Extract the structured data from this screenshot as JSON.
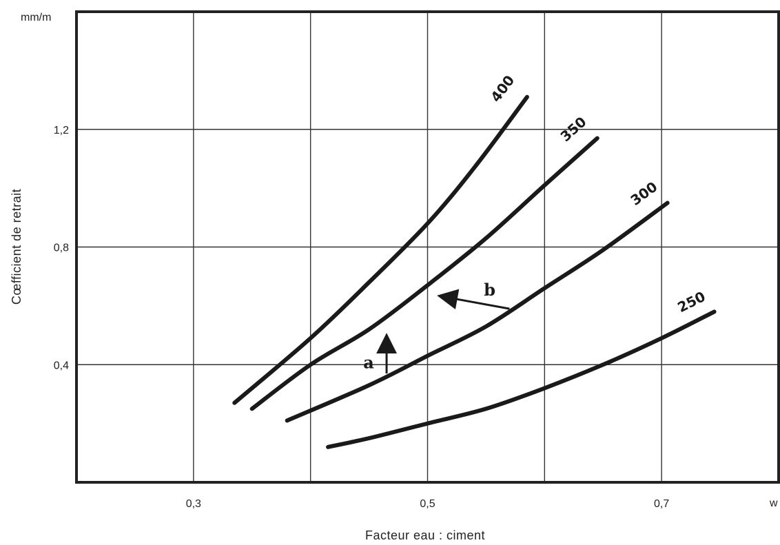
{
  "chart_data": {
    "type": "line",
    "title": "",
    "ylabel": "Cœfficient de retrait",
    "yunit": "mm/m",
    "xlabel": "Facteur eau : ciment",
    "xunit": "w",
    "xlim": [
      0.2,
      0.8
    ],
    "ylim": [
      0,
      1.6
    ],
    "x_ticks": [
      {
        "value": 0.3,
        "label": "0,3"
      },
      {
        "value": 0.5,
        "label": "0,5"
      },
      {
        "value": 0.7,
        "label": "0,7"
      }
    ],
    "y_ticks": [
      {
        "value": 0.4,
        "label": "0,4"
      },
      {
        "value": 0.8,
        "label": "0,8"
      },
      {
        "value": 1.2,
        "label": "1,2"
      }
    ],
    "grid_x": [
      0.3,
      0.4,
      0.5,
      0.6,
      0.7
    ],
    "grid_y": [
      0.4,
      0.8,
      1.2
    ],
    "grid": true,
    "series": [
      {
        "name": "400",
        "points": [
          [
            0.335,
            0.27
          ],
          [
            0.4,
            0.49
          ],
          [
            0.45,
            0.68
          ],
          [
            0.5,
            0.88
          ],
          [
            0.54,
            1.07
          ],
          [
            0.585,
            1.31
          ]
        ]
      },
      {
        "name": "350",
        "points": [
          [
            0.35,
            0.25
          ],
          [
            0.4,
            0.4
          ],
          [
            0.45,
            0.52
          ],
          [
            0.5,
            0.67
          ],
          [
            0.55,
            0.83
          ],
          [
            0.6,
            1.01
          ],
          [
            0.645,
            1.17
          ]
        ]
      },
      {
        "name": "300",
        "points": [
          [
            0.38,
            0.21
          ],
          [
            0.45,
            0.33
          ],
          [
            0.5,
            0.43
          ],
          [
            0.55,
            0.53
          ],
          [
            0.6,
            0.66
          ],
          [
            0.65,
            0.79
          ],
          [
            0.705,
            0.95
          ]
        ]
      },
      {
        "name": "250",
        "points": [
          [
            0.415,
            0.12
          ],
          [
            0.45,
            0.15
          ],
          [
            0.5,
            0.2
          ],
          [
            0.55,
            0.25
          ],
          [
            0.6,
            0.32
          ],
          [
            0.65,
            0.4
          ],
          [
            0.7,
            0.49
          ],
          [
            0.745,
            0.58
          ]
        ]
      }
    ],
    "annotations": [
      {
        "label": "a",
        "direction": "up",
        "x": 0.465,
        "y_from": 0.37,
        "y_to": 0.48
      },
      {
        "label": "b",
        "direction": "up-left",
        "x_from": 0.57,
        "y_from": 0.59,
        "x_to": 0.515,
        "y_to": 0.63
      }
    ]
  }
}
